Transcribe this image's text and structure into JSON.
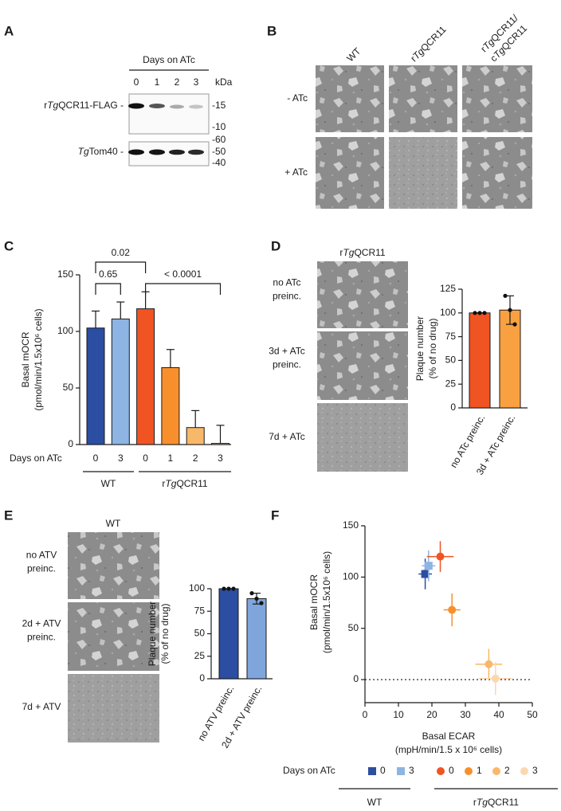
{
  "panels": {
    "a": {
      "label": "A",
      "lanes_title": "Days on ATc",
      "lanes": [
        "0",
        "1",
        "2",
        "3"
      ],
      "unit": "kDa",
      "blots": [
        {
          "name": [
            {
              "text": "r"
            },
            {
              "text": "Tg",
              "italic": true
            },
            {
              "text": "QCR11-FLAG -"
            }
          ],
          "markers": [
            "-15",
            "-10"
          ]
        },
        {
          "name": [
            {
              "text": "Tg",
              "italic": true
            },
            {
              "text": "Tom40 -"
            }
          ],
          "markers": [
            "-60",
            "-50",
            "-40"
          ]
        }
      ]
    },
    "b": {
      "label": "B",
      "columns": [
        [
          [
            {
              "text": "WT"
            }
          ]
        ],
        [
          [
            {
              "text": "r"
            },
            {
              "text": "Tg",
              "italic": true
            },
            {
              "text": "QCR11"
            }
          ]
        ],
        [
          [
            {
              "text": "r"
            },
            {
              "text": "Tg",
              "italic": true
            },
            {
              "text": "QCR11/"
            }
          ],
          [
            {
              "text": "c"
            },
            {
              "text": "Tg",
              "italic": true
            },
            {
              "text": "QCR11"
            }
          ]
        ]
      ],
      "rows": [
        "- ATc",
        "+ ATc"
      ]
    },
    "c": {
      "label": "C"
    },
    "d": {
      "label": "D",
      "title": [
        {
          "text": "r"
        },
        {
          "text": "Tg",
          "italic": true
        },
        {
          "text": "QCR11"
        }
      ],
      "rows": [
        [
          "no ATc",
          "preinc."
        ],
        [
          "3d + ATc",
          "preinc."
        ],
        [
          "7d + ATc"
        ]
      ]
    },
    "e": {
      "label": "E",
      "title": [
        {
          "text": "WT"
        }
      ],
      "rows": [
        [
          "no ATV",
          "preinc."
        ],
        [
          "2d + ATV",
          "preinc."
        ],
        [
          "7d + ATV"
        ]
      ]
    },
    "f": {
      "label": "F"
    }
  },
  "chart_data": [
    {
      "type": "bar",
      "ylabel": [
        "Basal mOCR",
        "(pmol/min/1.5x10⁶ cells)"
      ],
      "xlabel": "Days on ATc",
      "categories": [
        "0",
        "3",
        "0",
        "1",
        "2",
        "3"
      ],
      "values": [
        103,
        111,
        120,
        68,
        15,
        1
      ],
      "errors": [
        15,
        15,
        15,
        16,
        15,
        16
      ],
      "colors": [
        "#2b4ea2",
        "#8db4e2",
        "#f05423",
        "#f7902c",
        "#f8b86a",
        "#fbd7b0"
      ],
      "groups": [
        [
          {
            "text": "WT"
          }
        ],
        [
          {
            "text": "r"
          },
          {
            "text": "Tg",
            "italic": true
          },
          {
            "text": "QCR11"
          }
        ]
      ],
      "annotations": [
        "0.02",
        "0.65",
        "< 0.0001"
      ],
      "ylim": [
        0,
        150
      ],
      "yticks": [
        0,
        50,
        100,
        150
      ]
    },
    {
      "type": "bar",
      "ylabel": [
        "Plaque number",
        "(% of no drug)"
      ],
      "categories": [
        "no ATc preinc.",
        "3d + ATc preinc."
      ],
      "values": [
        100,
        103
      ],
      "errors": [
        0,
        15
      ],
      "points": [
        [
          100,
          100,
          100
        ],
        [
          118,
          103,
          88
        ]
      ],
      "colors": [
        "#f05423",
        "#f9a040"
      ],
      "ylim": [
        0,
        125
      ],
      "yticks": [
        0,
        25,
        50,
        75,
        100,
        125
      ]
    },
    {
      "type": "bar",
      "ylabel": [
        "Plaque number",
        "(% of no drug)"
      ],
      "categories": [
        "no ATV preinc.",
        "2d + ATV preinc."
      ],
      "values": [
        100,
        89
      ],
      "errors": [
        0,
        6
      ],
      "points": [
        [
          100,
          100,
          100
        ],
        [
          95,
          89,
          84
        ]
      ],
      "colors": [
        "#2b4ea2",
        "#7ea6dc"
      ],
      "ylim": [
        0,
        100
      ],
      "yticks": [
        0,
        25,
        50,
        75,
        100
      ]
    },
    {
      "type": "scatter",
      "ylabel": [
        "Basal mOCR",
        "(pmol/min/1.5x10⁶ cells)"
      ],
      "xlabel": [
        "Basal ECAR",
        "(mpH/min/1.5 x 10⁶ cells)"
      ],
      "xlim": [
        0,
        50
      ],
      "xticks": [
        0,
        10,
        20,
        30,
        40,
        50
      ],
      "ylim": [
        -22.5,
        150
      ],
      "yticks": [
        0,
        50,
        100,
        150
      ],
      "zero_line": true,
      "legend_title": "Days on ATc",
      "legend_groups": [
        {
          "label": [
            {
              "text": "WT"
            }
          ],
          "series": [
            {
              "name": "0",
              "marker": "square",
              "color": "#2b4ea2",
              "x": 18,
              "y": 103,
              "xerr": 2,
              "yerr": 15
            },
            {
              "name": "3",
              "marker": "square",
              "color": "#8db4e2",
              "x": 19,
              "y": 111,
              "xerr": 2,
              "yerr": 15
            }
          ]
        },
        {
          "label": [
            {
              "text": "r"
            },
            {
              "text": "Tg",
              "italic": true
            },
            {
              "text": "QCR11"
            }
          ],
          "series": [
            {
              "name": "0",
              "marker": "circle",
              "color": "#f05423",
              "x": 22.5,
              "y": 120,
              "xerr": 4,
              "yerr": 15
            },
            {
              "name": "1",
              "marker": "circle",
              "color": "#f7902c",
              "x": 26,
              "y": 68,
              "xerr": 2.5,
              "yerr": 16
            },
            {
              "name": "2",
              "marker": "circle",
              "color": "#f8b86a",
              "x": 37,
              "y": 15,
              "xerr": 4,
              "yerr": 15
            },
            {
              "name": "3",
              "marker": "circle",
              "color": "#fbd7b0",
              "x": 39,
              "y": 1,
              "xerr": 5,
              "yerr": 16
            }
          ]
        }
      ]
    }
  ]
}
